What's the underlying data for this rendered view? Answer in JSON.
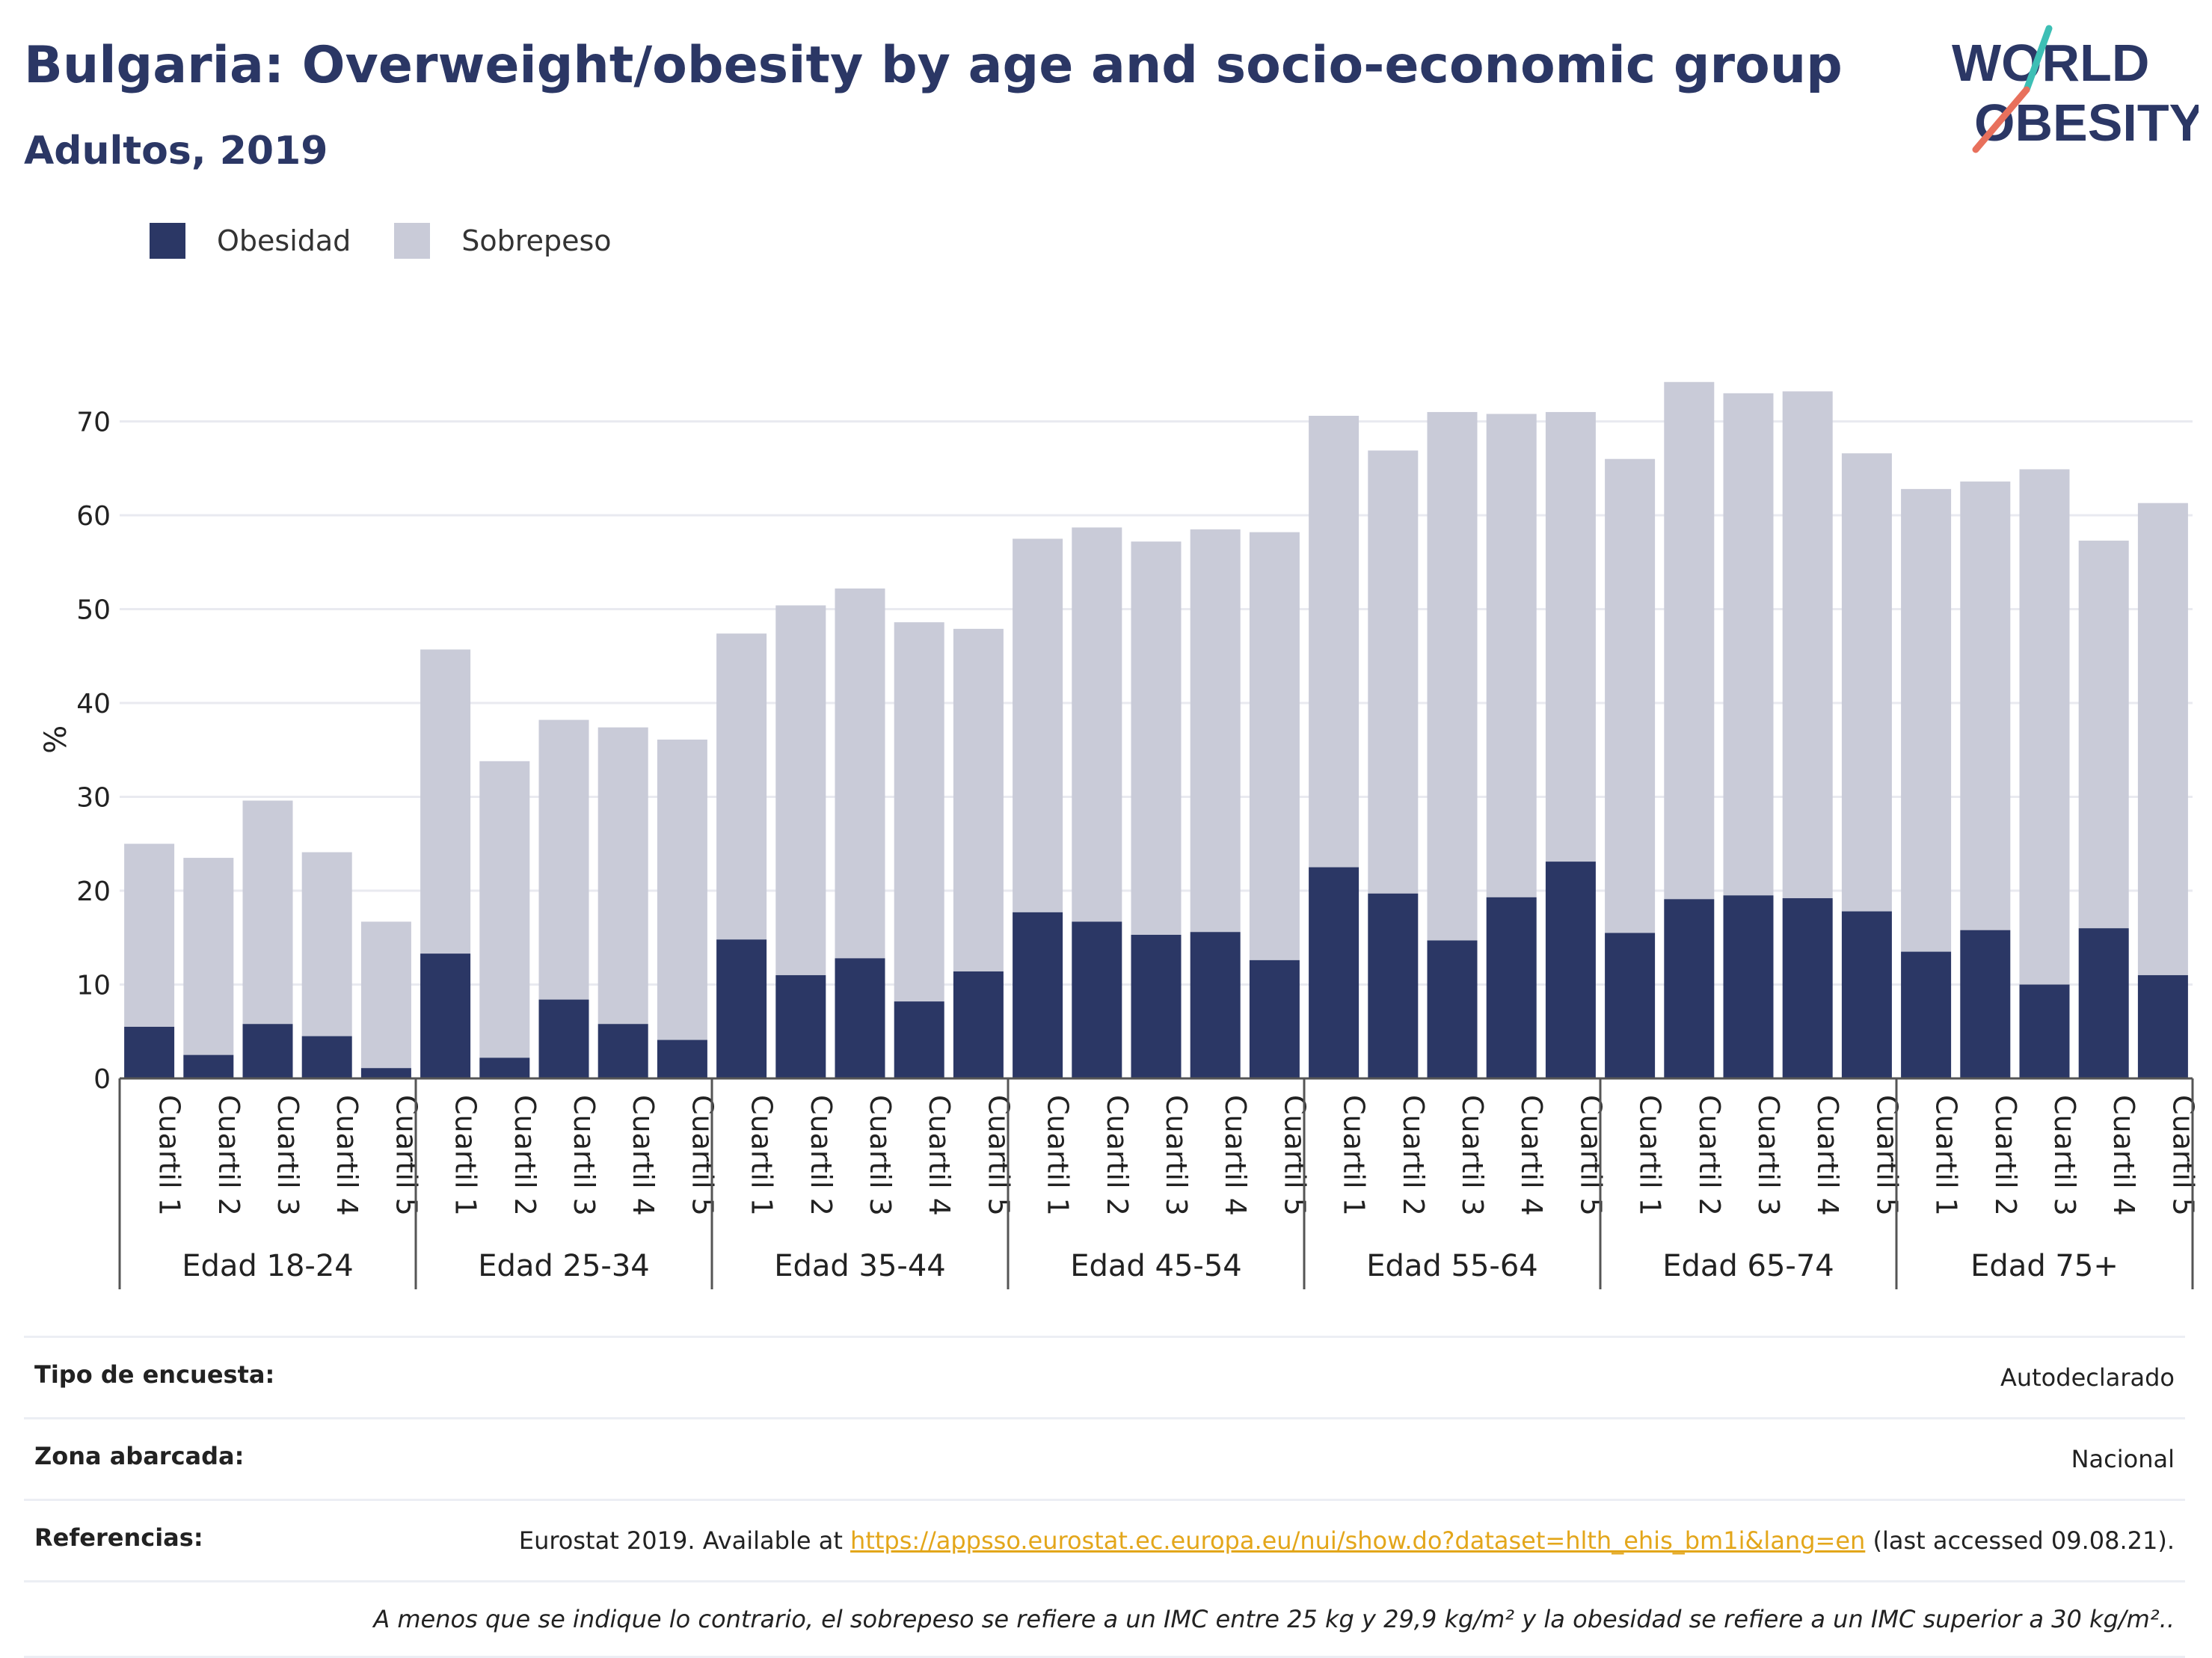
{
  "title": "Bulgaria: Overweight/obesity by age and socio-economic group",
  "subtitle": "Adultos, 2019",
  "logo": {
    "line1": "WORLD",
    "line2": "OBESITY"
  },
  "colors": {
    "obesity": "#2b3765",
    "overweight": "#c9cbd8",
    "accent": "#e3a61a",
    "grid": "#e9eaf0"
  },
  "chart_data": {
    "type": "bar",
    "stacked": true,
    "ylabel": "%",
    "ylim": [
      0,
      75
    ],
    "yticks": [
      0,
      10,
      20,
      30,
      40,
      50,
      60,
      70
    ],
    "legend": [
      "Obesidad",
      "Sobrepeso"
    ],
    "groups": [
      "Edad 18-24",
      "Edad 25-34",
      "Edad 35-44",
      "Edad 45-54",
      "Edad 55-64",
      "Edad 65-74",
      "Edad 75+"
    ],
    "categories": [
      "Cuartil 1",
      "Cuartil 2",
      "Cuartil 3",
      "Cuartil 4",
      "Cuartil 5"
    ],
    "series": [
      {
        "name": "Obesidad",
        "values": [
          [
            5.5,
            2.5,
            5.8,
            4.5,
            1.1
          ],
          [
            13.3,
            2.2,
            8.4,
            5.8,
            4.1
          ],
          [
            14.8,
            11.0,
            12.8,
            8.2,
            11.4
          ],
          [
            17.7,
            16.7,
            15.3,
            15.6,
            12.6
          ],
          [
            22.5,
            19.7,
            14.7,
            19.3,
            23.1
          ],
          [
            15.5,
            19.1,
            19.5,
            19.2,
            17.8
          ],
          [
            13.5,
            15.8,
            10.0,
            16.0,
            11.0
          ]
        ]
      },
      {
        "name": "Sobrepeso",
        "values": [
          [
            19.5,
            21.0,
            23.8,
            19.6,
            15.6
          ],
          [
            32.4,
            31.6,
            29.8,
            31.6,
            32.0
          ],
          [
            32.6,
            39.4,
            39.4,
            40.4,
            36.5
          ],
          [
            39.8,
            42.0,
            41.9,
            42.9,
            45.6
          ],
          [
            48.1,
            47.2,
            56.3,
            51.5,
            47.9
          ],
          [
            50.5,
            55.1,
            53.5,
            54.0,
            48.8
          ],
          [
            49.3,
            47.8,
            54.9,
            41.3,
            50.3
          ]
        ]
      }
    ]
  },
  "info": {
    "survey_label": "Tipo de encuesta:",
    "survey_value": "Autodeclarado",
    "area_label": "Zona abarcada:",
    "area_value": "Nacional",
    "refs_label": "Referencias:",
    "refs_prefix": "Eurostat 2019. Available at ",
    "refs_link": "https://appsso.eurostat.ec.europa.eu/nui/show.do?dataset=hlth_ehis_bm1i&lang=en",
    "refs_suffix": " (last accessed 09.08.21).",
    "note": "A menos que se indique lo contrario, el sobrepeso se refiere a un IMC entre 25 kg y 29,9 kg/m² y la obesidad se refiere a un IMC superior a 30 kg/m².."
  }
}
